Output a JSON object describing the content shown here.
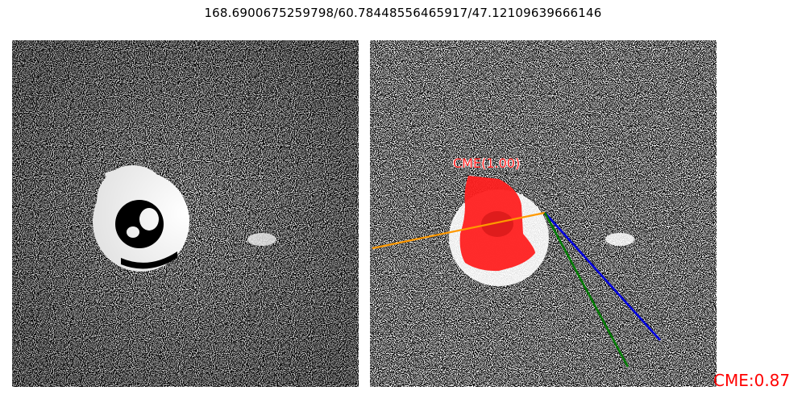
{
  "title": "168.6900675259798/60.78448556465917/47.12109639666146",
  "left_panel": {
    "content": "difference-image"
  },
  "right_panel": {
    "content": "difference-image-with-cme-mask",
    "cme_label": "CME(1.00)",
    "mask_color": "#ff2020",
    "line_colors": {
      "orange": "#ff9900",
      "blue": "#0000dd",
      "green": "#007a00"
    }
  },
  "cme_score_label": "CME:0.87",
  "colors": {
    "score_text": "#ff0000",
    "background": "#ffffff"
  }
}
